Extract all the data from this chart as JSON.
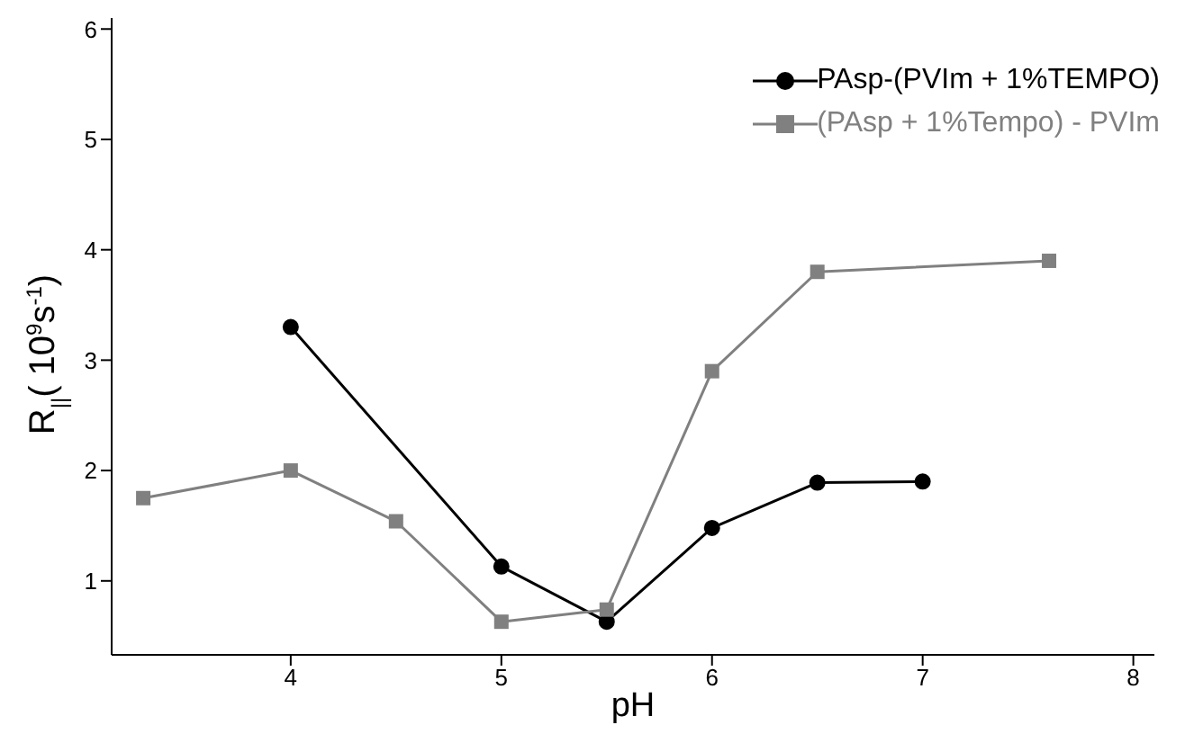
{
  "chart_data": {
    "type": "line",
    "xlabel": "pH",
    "ylabel": "R$_{||}$( 10$^{9}$s$^{-1}$)",
    "xlim": [
      3.15,
      8.1
    ],
    "xticks": [
      4,
      5,
      6,
      7,
      8
    ],
    "ylim": [
      0.33,
      6.1
    ],
    "yticks": [
      1,
      2,
      3,
      4,
      5,
      6
    ],
    "grid": false,
    "legend": "top right",
    "line_style": "solid",
    "series": [
      {
        "name": "PAsp-(PVIm + 1%TEMPO)",
        "color": "#000000",
        "marker": "circle",
        "x": [
          4,
          5,
          5.5,
          6,
          6.5,
          7
        ],
        "values": [
          3.3,
          1.13,
          0.63,
          1.48,
          1.89,
          1.9
        ]
      },
      {
        "name": "(PAsp + 1%Tempo) - PVIm",
        "color": "#808080",
        "marker": "square",
        "x": [
          3.3,
          4,
          4.5,
          5,
          5.5,
          6,
          6.5,
          7.6
        ],
        "values": [
          1.75,
          2.0,
          1.54,
          0.63,
          0.74,
          2.9,
          3.8,
          3.9
        ]
      }
    ]
  }
}
